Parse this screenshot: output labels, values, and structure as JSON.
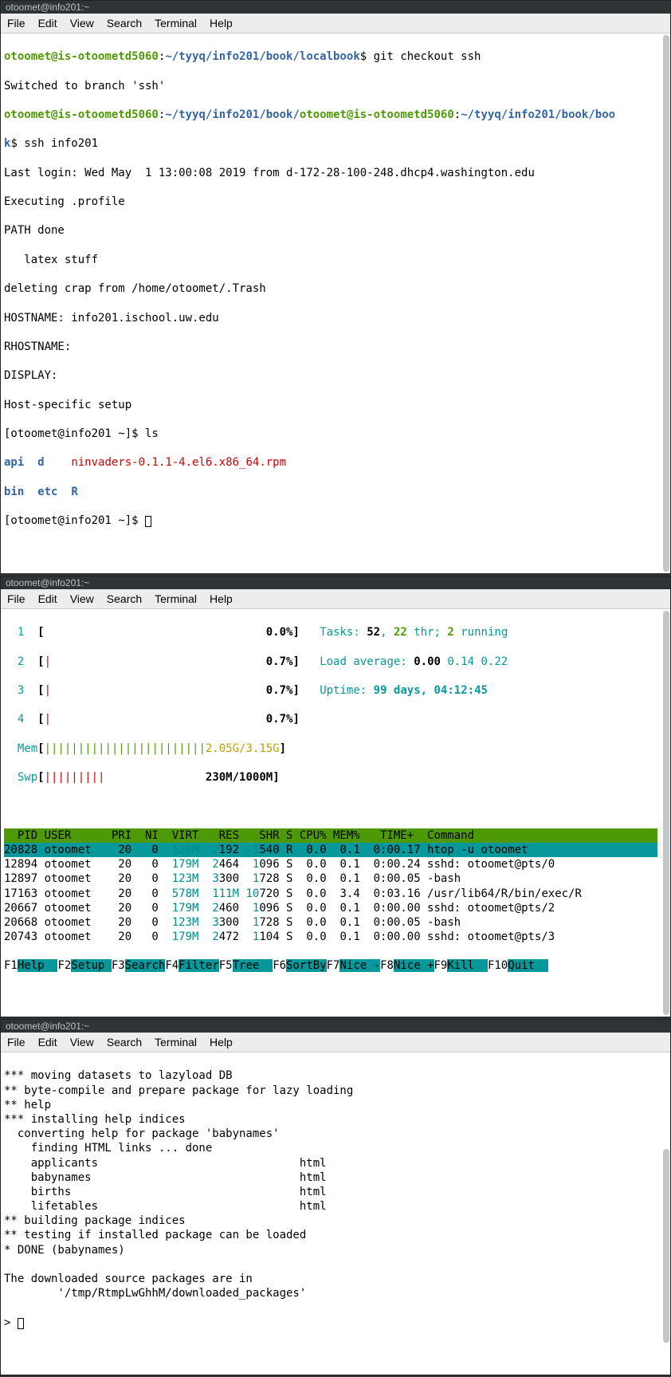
{
  "menubar": {
    "file": "File",
    "edit": "Edit",
    "view": "View",
    "search": "Search",
    "terminal": "Terminal",
    "help": "Help"
  },
  "colors": {
    "titlebar_bg": "#2e3436",
    "menubar_bg": "#ededed",
    "term_bg": "#ffffff",
    "green_bold": "#4e9a06",
    "blue_bold": "#3465a4",
    "red": "#cc0000",
    "cyan": "#008b8b",
    "cyan_bg": "#06989a",
    "green_bg": "#4e9a06",
    "yellow": "#c4a000"
  },
  "win1": {
    "title": "otoomet@info201:~",
    "prompt_user1": "otoomet@is-otoometd5060",
    "prompt_path1": "~/tyyq/info201/book/localbook",
    "cmd1": "$ git checkout ssh",
    "line2": "Switched to branch 'ssh'",
    "prompt_user2": "otoomet@is-otoometd5060",
    "prompt_path2": "~/tyyq/info201/book/",
    "prompt_user2b": "otoomet@is-otoometd5060",
    "prompt_path2b": "~/tyyq/info201/book/boo",
    "prompt_k": "k",
    "cmd2": "$ ssh info201",
    "line3": "Last login: Wed May  1 13:00:08 2019 from d-172-28-100-248.dhcp4.washington.edu",
    "line4": "Executing .profile",
    "line5": "PATH done",
    "line6": "   latex stuff",
    "line7": "deleting crap from /home/otoomet/.Trash",
    "line8": "HOSTNAME: info201.ischool.uw.edu",
    "line9": "RHOSTNAME:",
    "line10": "DISPLAY:",
    "line11": "Host-specific setup",
    "line12": "[otoomet@info201 ~]$ ls",
    "ls_api": "api",
    "ls_d": "d",
    "ls_ninvaders": "ninvaders-0.1.1-4.el6.x86_64.rpm",
    "ls_bin": "bin",
    "ls_etc": "etc",
    "ls_R": "R",
    "line15": "[otoomet@info201 ~]$ "
  },
  "win2": {
    "title": "otoomet@info201:~",
    "cpu": {
      "n1": "1",
      "n2": "2",
      "n3": "3",
      "n4": "4",
      "p1": "0.0%",
      "p2": "0.7%",
      "p3": "0.7%",
      "p4": "0.7%"
    },
    "mem_label": "Mem",
    "mem_val": "2.05G/3.15G",
    "swp_label": "Swp",
    "swp_val": "230M/1000M",
    "tasks_label": "Tasks: ",
    "tasks_n": "52",
    "tasks_sep": ", ",
    "tasks_thr_n": "22",
    "tasks_thr": " thr; ",
    "tasks_run_n": "2",
    "tasks_run": " running",
    "load_label": "Load average: ",
    "load_1": "0.00",
    "load_2": " 0.14 0.22",
    "uptime_label": "Uptime: ",
    "uptime_val": "99 days, 04:12:45",
    "header": "  PID USER      PRI  NI  VIRT   RES   SHR S CPU% MEM%   TIME+  Command",
    "rows": [
      {
        "pid": "20828",
        "user": "otoomet",
        "pri": "20",
        "ni": "0",
        "virt": "129M",
        "res": "2192",
        "shr": "1540",
        "s": "R",
        "cpu": "0.0",
        "mem": "0.1",
        "time": "0:00.17",
        "cmd": "htop -u otoomet",
        "hl": true
      },
      {
        "pid": "12894",
        "user": "otoomet",
        "pri": "20",
        "ni": "0",
        "virt": "179M",
        "res": "2464",
        "shr": "1096",
        "s": "S",
        "cpu": "0.0",
        "mem": "0.1",
        "time": "0:00.24",
        "cmd": "sshd: otoomet@pts/0",
        "hl": false
      },
      {
        "pid": "12897",
        "user": "otoomet",
        "pri": "20",
        "ni": "0",
        "virt": "123M",
        "res": "3300",
        "shr": "1728",
        "s": "S",
        "cpu": "0.0",
        "mem": "0.1",
        "time": "0:00.05",
        "cmd": "-bash",
        "hl": false
      },
      {
        "pid": "17163",
        "user": "otoomet",
        "pri": "20",
        "ni": "0",
        "virt": "578M",
        "res": "111M",
        "shr": "10720",
        "s": "S",
        "cpu": "0.0",
        "mem": "3.4",
        "time": "0:03.16",
        "cmd": "/usr/lib64/R/bin/exec/R",
        "hl": false
      },
      {
        "pid": "20667",
        "user": "otoomet",
        "pri": "20",
        "ni": "0",
        "virt": "179M",
        "res": "2460",
        "shr": "1096",
        "s": "S",
        "cpu": "0.0",
        "mem": "0.1",
        "time": "0:00.00",
        "cmd": "sshd: otoomet@pts/2",
        "hl": false
      },
      {
        "pid": "20668",
        "user": "otoomet",
        "pri": "20",
        "ni": "0",
        "virt": "123M",
        "res": "3300",
        "shr": "1728",
        "s": "S",
        "cpu": "0.0",
        "mem": "0.1",
        "time": "0:00.05",
        "cmd": "-bash",
        "hl": false
      },
      {
        "pid": "20743",
        "user": "otoomet",
        "pri": "20",
        "ni": "0",
        "virt": "179M",
        "res": "2472",
        "shr": "1104",
        "s": "S",
        "cpu": "0.0",
        "mem": "0.1",
        "time": "0:00.00",
        "cmd": "sshd: otoomet@pts/3",
        "hl": false
      }
    ],
    "fkeys": [
      {
        "k": "F1",
        "l": "Help  "
      },
      {
        "k": "F2",
        "l": "Setup "
      },
      {
        "k": "F3",
        "l": "Search"
      },
      {
        "k": "F4",
        "l": "Filter"
      },
      {
        "k": "F5",
        "l": "Tree  "
      },
      {
        "k": "F6",
        "l": "SortBy"
      },
      {
        "k": "F7",
        "l": "Nice -"
      },
      {
        "k": "F8",
        "l": "Nice +"
      },
      {
        "k": "F9",
        "l": "Kill  "
      },
      {
        "k": "F10",
        "l": "Quit  "
      }
    ]
  },
  "win3": {
    "title": "otoomet@info201:~",
    "lines": [
      "*** moving datasets to lazyload DB",
      "** byte-compile and prepare package for lazy loading",
      "** help",
      "*** installing help indices",
      "  converting help for package 'babynames'",
      "    finding HTML links ... done",
      "    applicants                              html  ",
      "    babynames                               html  ",
      "    births                                  html  ",
      "    lifetables                              html  ",
      "** building package indices",
      "** testing if installed package can be loaded",
      "* DONE (babynames)",
      "",
      "The downloaded source packages are in",
      "        '/tmp/RtmpLwGhhM/downloaded_packages'"
    ],
    "prompt": "> "
  }
}
